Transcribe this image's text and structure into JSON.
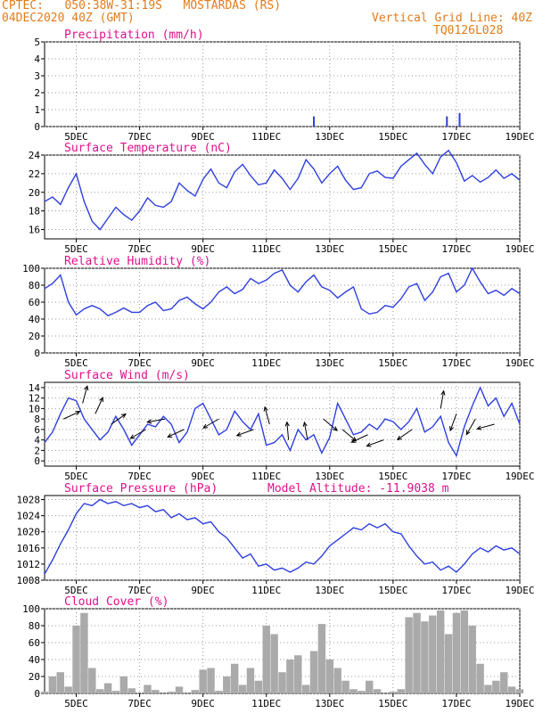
{
  "header": {
    "left_line1": "CPTEC:   050:38W-31:19S   MOSTARDAS (RS)",
    "left_line2": "04DEC2020 40Z (GMT)",
    "right_line1": "Vertical Grid Line: 40Z",
    "right_line2": "TQ0126L028"
  },
  "colors": {
    "header": "#e07c1c",
    "title": "#e0118c",
    "line": "#2f3fe0",
    "bar": "#aaaaaa",
    "arrow": "#000000"
  },
  "x_axis": {
    "tick_labels": [
      "5DEC",
      "7DEC",
      "9DEC",
      "11DEC",
      "13DEC",
      "15DEC",
      "17DEC",
      "19DEC"
    ],
    "tick_days": [
      5,
      7,
      9,
      11,
      13,
      15,
      17,
      19
    ],
    "xlim": [
      4.0,
      19.0
    ]
  },
  "chart_data": [
    {
      "type": "bar",
      "title": "Precipitation (mm/h)",
      "ylim": [
        0,
        5
      ],
      "yticks": [
        0,
        1,
        2,
        3,
        4,
        5
      ],
      "yticklabels": [
        "0",
        "1",
        "2",
        "3",
        "4",
        "5"
      ],
      "x": [
        12.5,
        16.7,
        17.1
      ],
      "values": [
        0.6,
        0.6,
        0.8
      ]
    },
    {
      "type": "line",
      "title": "Surface Temperature (nC)",
      "ylim": [
        15,
        24
      ],
      "yticks": [
        16,
        18,
        20,
        22,
        24
      ],
      "yticklabels": [
        "16",
        "18",
        "20",
        "22",
        "24"
      ],
      "x": [
        4.0,
        4.25,
        4.5,
        4.75,
        5.0,
        5.25,
        5.5,
        5.75,
        6.0,
        6.25,
        6.5,
        6.75,
        7.0,
        7.25,
        7.5,
        7.75,
        8.0,
        8.25,
        8.5,
        8.75,
        9.0,
        9.25,
        9.5,
        9.75,
        10.0,
        10.25,
        10.5,
        10.75,
        11.0,
        11.25,
        11.5,
        11.75,
        12.0,
        12.25,
        12.5,
        12.75,
        13.0,
        13.25,
        13.5,
        13.75,
        14.0,
        14.25,
        14.5,
        14.75,
        15.0,
        15.25,
        15.5,
        15.75,
        16.0,
        16.25,
        16.5,
        16.75,
        17.0,
        17.25,
        17.5,
        17.75,
        18.0,
        18.25,
        18.5,
        18.75,
        19.0
      ],
      "values": [
        19.0,
        19.5,
        18.7,
        20.5,
        22.0,
        19.0,
        16.9,
        16.0,
        17.2,
        18.4,
        17.6,
        17.0,
        18.0,
        19.4,
        18.6,
        18.4,
        19.0,
        21.0,
        20.2,
        19.6,
        21.4,
        22.5,
        21.0,
        20.5,
        22.2,
        23.0,
        21.8,
        20.8,
        21.0,
        22.4,
        21.5,
        20.3,
        21.5,
        23.5,
        22.5,
        21.0,
        22.0,
        22.8,
        21.3,
        20.3,
        20.5,
        22.0,
        22.3,
        21.6,
        21.5,
        22.8,
        23.5,
        24.2,
        23.0,
        22.0,
        23.8,
        24.5,
        23.2,
        21.2,
        21.8,
        21.1,
        21.6,
        22.4,
        21.5,
        22.0,
        21.3
      ]
    },
    {
      "type": "line",
      "title": "Relative Humidity (%)",
      "ylim": [
        0,
        100
      ],
      "yticks": [
        0,
        20,
        40,
        60,
        80,
        100
      ],
      "yticklabels": [
        "0",
        "20",
        "40",
        "60",
        "80",
        "100"
      ],
      "x": [
        4.0,
        4.25,
        4.5,
        4.75,
        5.0,
        5.25,
        5.5,
        5.75,
        6.0,
        6.25,
        6.5,
        6.75,
        7.0,
        7.25,
        7.5,
        7.75,
        8.0,
        8.25,
        8.5,
        8.75,
        9.0,
        9.25,
        9.5,
        9.75,
        10.0,
        10.25,
        10.5,
        10.75,
        11.0,
        11.25,
        11.5,
        11.75,
        12.0,
        12.25,
        12.5,
        12.75,
        13.0,
        13.25,
        13.5,
        13.75,
        14.0,
        14.25,
        14.5,
        14.75,
        15.0,
        15.25,
        15.5,
        15.75,
        16.0,
        16.25,
        16.5,
        16.75,
        17.0,
        17.25,
        17.5,
        17.75,
        18.0,
        18.25,
        18.5,
        18.75,
        19.0
      ],
      "values": [
        76,
        82,
        92,
        60,
        45,
        52,
        56,
        52,
        44,
        48,
        53,
        48,
        48,
        56,
        60,
        50,
        52,
        62,
        66,
        58,
        52,
        60,
        72,
        78,
        70,
        75,
        88,
        82,
        86,
        94,
        98,
        80,
        72,
        84,
        92,
        78,
        74,
        65,
        72,
        78,
        52,
        46,
        48,
        56,
        54,
        64,
        78,
        82,
        62,
        72,
        90,
        94,
        72,
        80,
        100,
        84,
        70,
        74,
        68,
        76,
        70
      ]
    },
    {
      "type": "line",
      "title": "Surface Wind (m/s)",
      "ylim": [
        -1,
        15
      ],
      "yticks": [
        0,
        2,
        4,
        6,
        8,
        10,
        12,
        14
      ],
      "yticklabels": [
        "0",
        "2",
        "4",
        "6",
        "8",
        "10",
        "12",
        "14"
      ],
      "x": [
        4.0,
        4.25,
        4.5,
        4.75,
        5.0,
        5.25,
        5.5,
        5.75,
        6.0,
        6.25,
        6.5,
        6.75,
        7.0,
        7.25,
        7.5,
        7.75,
        8.0,
        8.25,
        8.5,
        8.75,
        9.0,
        9.25,
        9.5,
        9.75,
        10.0,
        10.25,
        10.5,
        10.75,
        11.0,
        11.25,
        11.5,
        11.75,
        12.0,
        12.25,
        12.5,
        12.75,
        13.0,
        13.25,
        13.5,
        13.75,
        14.0,
        14.25,
        14.5,
        14.75,
        15.0,
        15.25,
        15.5,
        15.75,
        16.0,
        16.25,
        16.5,
        16.75,
        17.0,
        17.25,
        17.5,
        17.75,
        18.0,
        18.25,
        18.5,
        18.75,
        19.0
      ],
      "values": [
        3.5,
        5.5,
        9.0,
        12.0,
        11.5,
        8.0,
        6.0,
        4.0,
        5.5,
        8.5,
        6.0,
        3.0,
        5.0,
        7.0,
        6.5,
        8.5,
        7.0,
        3.5,
        5.5,
        10.0,
        11.0,
        8.0,
        5.0,
        6.0,
        9.5,
        7.5,
        6.0,
        9.0,
        3.0,
        3.5,
        5.0,
        2.0,
        6.0,
        4.0,
        5.0,
        1.5,
        4.5,
        11.0,
        8.0,
        5.0,
        5.5,
        7.0,
        6.0,
        8.0,
        7.5,
        6.0,
        7.5,
        10.0,
        5.5,
        6.5,
        8.5,
        3.5,
        1.0,
        6.5,
        10.5,
        14.0,
        10.5,
        12.0,
        8.5,
        11.0,
        7.0
      ],
      "arrows": {
        "x": [
          4.6,
          5.2,
          5.6,
          6.1,
          7.2,
          7.8,
          8.4,
          9.5,
          10.6,
          11.1,
          11.7,
          12.3,
          12.8,
          13.4,
          14.2,
          14.7,
          15.6,
          16.5,
          17.0,
          17.6,
          18.2
        ],
        "speed": [
          8,
          11,
          9,
          7,
          6,
          8,
          6,
          8,
          6,
          7,
          4,
          4,
          8,
          6,
          5,
          4,
          6,
          10,
          9,
          8,
          7
        ],
        "angle": [
          25,
          75,
          65,
          35,
          -150,
          -170,
          -155,
          -150,
          -160,
          105,
          95,
          100,
          -40,
          -40,
          -155,
          -160,
          -145,
          80,
          -110,
          -120,
          -165
        ]
      }
    },
    {
      "type": "line",
      "title": "Surface Pressure (hPa)",
      "annotation": "Model Altitude: -11.9038 m",
      "ylim": [
        1008,
        1029
      ],
      "yticks": [
        1008,
        1012,
        1016,
        1020,
        1024,
        1028
      ],
      "yticklabels": [
        "1008",
        "1012",
        "1016",
        "1020",
        "1024",
        "1028"
      ],
      "x": [
        4.0,
        4.25,
        4.5,
        4.75,
        5.0,
        5.25,
        5.5,
        5.75,
        6.0,
        6.25,
        6.5,
        6.75,
        7.0,
        7.25,
        7.5,
        7.75,
        8.0,
        8.25,
        8.5,
        8.75,
        9.0,
        9.25,
        9.5,
        9.75,
        10.0,
        10.25,
        10.5,
        10.75,
        11.0,
        11.25,
        11.5,
        11.75,
        12.0,
        12.25,
        12.5,
        12.75,
        13.0,
        13.25,
        13.5,
        13.75,
        14.0,
        14.25,
        14.5,
        14.75,
        15.0,
        15.25,
        15.5,
        15.75,
        16.0,
        16.25,
        16.5,
        16.75,
        17.0,
        17.25,
        17.5,
        17.75,
        18.0,
        18.25,
        18.5,
        18.75,
        19.0
      ],
      "values": [
        1009.5,
        1013.0,
        1017.0,
        1020.5,
        1024.5,
        1027.0,
        1026.5,
        1028.0,
        1027.0,
        1027.5,
        1026.5,
        1027.0,
        1026.0,
        1026.5,
        1025.0,
        1025.5,
        1023.5,
        1024.5,
        1023.0,
        1023.5,
        1022.0,
        1022.5,
        1020.0,
        1018.5,
        1016.0,
        1013.5,
        1014.5,
        1011.5,
        1012.0,
        1010.5,
        1011.0,
        1010.0,
        1011.0,
        1012.5,
        1012.0,
        1014.0,
        1016.5,
        1018.0,
        1019.5,
        1021.0,
        1020.5,
        1022.0,
        1021.0,
        1022.0,
        1020.0,
        1019.5,
        1016.5,
        1014.0,
        1012.0,
        1012.5,
        1010.5,
        1011.5,
        1010.0,
        1012.0,
        1014.5,
        1016.0,
        1015.0,
        1016.5,
        1015.5,
        1016.0,
        1014.5
      ]
    },
    {
      "type": "area",
      "title": "Cloud Cover (%)",
      "ylim": [
        0,
        100
      ],
      "yticks": [
        0,
        20,
        40,
        60,
        80,
        100
      ],
      "yticklabels": [
        "0",
        "20",
        "40",
        "60",
        "80",
        "100"
      ],
      "x": [
        4.0,
        4.25,
        4.5,
        4.75,
        5.0,
        5.25,
        5.5,
        5.75,
        6.0,
        6.25,
        6.5,
        6.75,
        7.0,
        7.25,
        7.5,
        7.75,
        8.0,
        8.25,
        8.5,
        8.75,
        9.0,
        9.25,
        9.5,
        9.75,
        10.0,
        10.25,
        10.5,
        10.75,
        11.0,
        11.25,
        11.5,
        11.75,
        12.0,
        12.25,
        12.5,
        12.75,
        13.0,
        13.25,
        13.5,
        13.75,
        14.0,
        14.25,
        14.5,
        14.75,
        15.0,
        15.25,
        15.5,
        15.75,
        16.0,
        16.25,
        16.5,
        16.75,
        17.0,
        17.25,
        17.5,
        17.75,
        18.0,
        18.25,
        18.5,
        18.75,
        19.0
      ],
      "values": [
        2,
        20,
        25,
        8,
        80,
        95,
        30,
        5,
        12,
        3,
        20,
        6,
        0,
        10,
        4,
        0,
        2,
        8,
        0,
        4,
        28,
        30,
        3,
        20,
        35,
        10,
        30,
        15,
        80,
        70,
        25,
        40,
        45,
        10,
        50,
        82,
        40,
        30,
        15,
        5,
        3,
        15,
        5,
        0,
        2,
        5,
        90,
        95,
        85,
        92,
        98,
        70,
        95,
        98,
        80,
        35,
        10,
        15,
        25,
        8,
        5
      ]
    }
  ]
}
